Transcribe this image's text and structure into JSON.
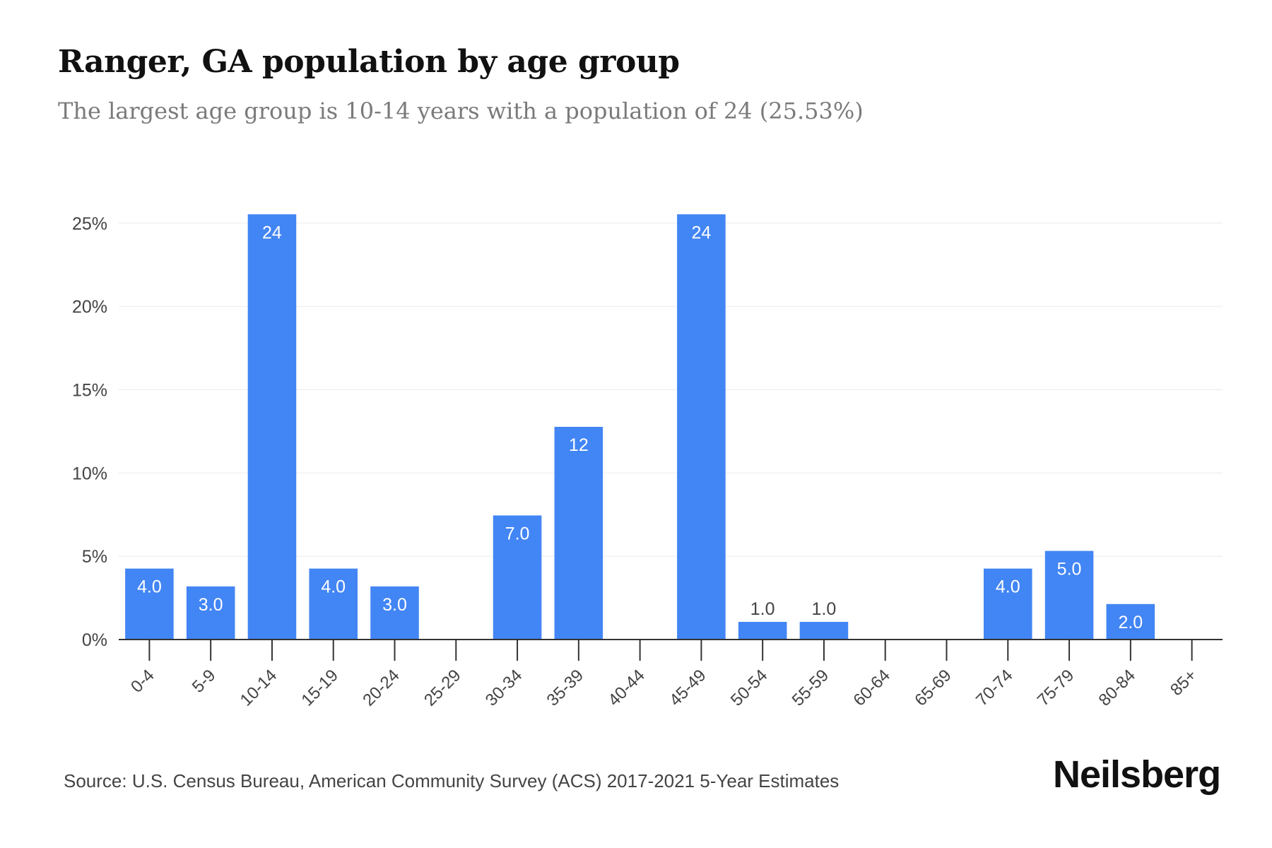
{
  "title": "Ranger, GA population by age group",
  "subtitle": "The largest age group is 10-14 years with a population of 24 (25.53%)",
  "source": "Source: U.S. Census Bureau, American Community Survey (ACS) 2017-2021 5-Year Estimates",
  "brand": "Neilsberg",
  "chart_data": {
    "type": "bar",
    "bar_color": "#4285f4",
    "grid": true,
    "ylim": [
      0,
      26.5
    ],
    "yticks": [
      0,
      5,
      10,
      15,
      20,
      25
    ],
    "ytick_labels": [
      "0%",
      "5%",
      "10%",
      "15%",
      "20%",
      "25%"
    ],
    "categories": [
      "0-4",
      "5-9",
      "10-14",
      "15-19",
      "20-24",
      "25-29",
      "30-34",
      "35-39",
      "40-44",
      "45-49",
      "50-54",
      "55-59",
      "60-64",
      "65-69",
      "70-74",
      "75-79",
      "80-84",
      "85+"
    ],
    "values": [
      4.26,
      3.19,
      25.53,
      4.26,
      3.19,
      0,
      7.45,
      12.77,
      0,
      25.53,
      1.06,
      1.06,
      0,
      0,
      4.26,
      5.32,
      2.13,
      0
    ],
    "data_labels": [
      "4.0",
      "3.0",
      "24",
      "4.0",
      "3.0",
      "",
      "7.0",
      "12",
      "",
      "24",
      "1.0",
      "1.0",
      "",
      "",
      "4.0",
      "5.0",
      "2.0",
      ""
    ]
  }
}
